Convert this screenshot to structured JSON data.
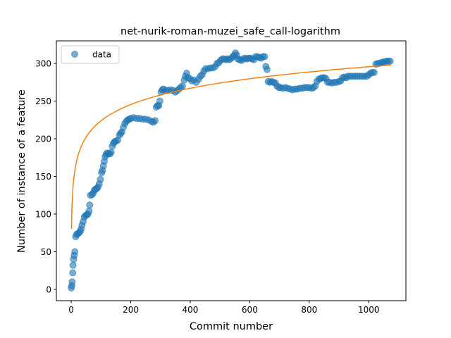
{
  "chart_data": {
    "type": "scatter",
    "title": "net-nurik-roman-muzei_safe_call-logarithm",
    "xlabel": "Commit number",
    "ylabel": "Number of instance of a feature",
    "xlim": [
      -50,
      1125
    ],
    "ylim": [
      -15,
      330
    ],
    "x_ticks": [
      0,
      200,
      400,
      600,
      800,
      1000
    ],
    "y_ticks": [
      0,
      50,
      100,
      150,
      200,
      250,
      300
    ],
    "grid": false,
    "legend": {
      "position": "upper-left",
      "entries": [
        "data"
      ]
    },
    "series": [
      {
        "name": "data",
        "kind": "scatter",
        "color": "#1f77b4",
        "points": [
          [
            0,
            2
          ],
          [
            2,
            5
          ],
          [
            3,
            10
          ],
          [
            5,
            22
          ],
          [
            6,
            32
          ],
          [
            8,
            40
          ],
          [
            10,
            45
          ],
          [
            12,
            50
          ],
          [
            15,
            70
          ],
          [
            18,
            73
          ],
          [
            22,
            74
          ],
          [
            26,
            75
          ],
          [
            30,
            77
          ],
          [
            33,
            80
          ],
          [
            36,
            85
          ],
          [
            40,
            90
          ],
          [
            44,
            96
          ],
          [
            48,
            98
          ],
          [
            52,
            99
          ],
          [
            56,
            100
          ],
          [
            60,
            104
          ],
          [
            62,
            112
          ],
          [
            65,
            125
          ],
          [
            70,
            126
          ],
          [
            74,
            128
          ],
          [
            78,
            132
          ],
          [
            82,
            133
          ],
          [
            86,
            134
          ],
          [
            90,
            136
          ],
          [
            94,
            140
          ],
          [
            98,
            146
          ],
          [
            102,
            155
          ],
          [
            105,
            158
          ],
          [
            108,
            164
          ],
          [
            111,
            170
          ],
          [
            114,
            176
          ],
          [
            117,
            179
          ],
          [
            120,
            181
          ],
          [
            125,
            180
          ],
          [
            130,
            180
          ],
          [
            134,
            182
          ],
          [
            138,
            190
          ],
          [
            142,
            194
          ],
          [
            146,
            196
          ],
          [
            150,
            197
          ],
          [
            156,
            198
          ],
          [
            162,
            205
          ],
          [
            166,
            207
          ],
          [
            170,
            209
          ],
          [
            175,
            215
          ],
          [
            180,
            220
          ],
          [
            185,
            223
          ],
          [
            190,
            225
          ],
          [
            195,
            226
          ],
          [
            200,
            227
          ],
          [
            210,
            228
          ],
          [
            220,
            227
          ],
          [
            230,
            227
          ],
          [
            240,
            226
          ],
          [
            250,
            226
          ],
          [
            260,
            225
          ],
          [
            270,
            223
          ],
          [
            276,
            222
          ],
          [
            282,
            224
          ],
          [
            286,
            242
          ],
          [
            290,
            244
          ],
          [
            294,
            244
          ],
          [
            298,
            250
          ],
          [
            302,
            262
          ],
          [
            306,
            265
          ],
          [
            310,
            266
          ],
          [
            318,
            264
          ],
          [
            326,
            264
          ],
          [
            334,
            265
          ],
          [
            342,
            264
          ],
          [
            350,
            262
          ],
          [
            356,
            264
          ],
          [
            362,
            266
          ],
          [
            368,
            268
          ],
          [
            374,
            270
          ],
          [
            380,
            278
          ],
          [
            384,
            283
          ],
          [
            388,
            287
          ],
          [
            392,
            281
          ],
          [
            398,
            280
          ],
          [
            405,
            277
          ],
          [
            412,
            278
          ],
          [
            420,
            275
          ],
          [
            428,
            279
          ],
          [
            434,
            283
          ],
          [
            440,
            285
          ],
          [
            446,
            290
          ],
          [
            452,
            293
          ],
          [
            460,
            293
          ],
          [
            468,
            294
          ],
          [
            476,
            294
          ],
          [
            484,
            296
          ],
          [
            490,
            300
          ],
          [
            496,
            301
          ],
          [
            502,
            304
          ],
          [
            508,
            306
          ],
          [
            514,
            306
          ],
          [
            520,
            305
          ],
          [
            526,
            306
          ],
          [
            532,
            305
          ],
          [
            538,
            307
          ],
          [
            544,
            309
          ],
          [
            548,
            311
          ],
          [
            552,
            314
          ],
          [
            556,
            311
          ],
          [
            560,
            306
          ],
          [
            566,
            305
          ],
          [
            572,
            304
          ],
          [
            578,
            306
          ],
          [
            584,
            307
          ],
          [
            590,
            306
          ],
          [
            596,
            307
          ],
          [
            602,
            307
          ],
          [
            608,
            306
          ],
          [
            614,
            305
          ],
          [
            620,
            309
          ],
          [
            626,
            309
          ],
          [
            632,
            308
          ],
          [
            638,
            307
          ],
          [
            644,
            309
          ],
          [
            650,
            309
          ],
          [
            654,
            296
          ],
          [
            658,
            292
          ],
          [
            662,
            276
          ],
          [
            668,
            275
          ],
          [
            674,
            276
          ],
          [
            680,
            275
          ],
          [
            686,
            274
          ],
          [
            692,
            270
          ],
          [
            698,
            268
          ],
          [
            704,
            268
          ],
          [
            712,
            267
          ],
          [
            720,
            268
          ],
          [
            728,
            267
          ],
          [
            736,
            266
          ],
          [
            744,
            265
          ],
          [
            752,
            266
          ],
          [
            760,
            266
          ],
          [
            768,
            267
          ],
          [
            776,
            267
          ],
          [
            784,
            268
          ],
          [
            792,
            268
          ],
          [
            800,
            268
          ],
          [
            808,
            267
          ],
          [
            814,
            268
          ],
          [
            820,
            270
          ],
          [
            826,
            276
          ],
          [
            832,
            279
          ],
          [
            838,
            280
          ],
          [
            844,
            281
          ],
          [
            850,
            281
          ],
          [
            856,
            280
          ],
          [
            862,
            275
          ],
          [
            868,
            275
          ],
          [
            876,
            274
          ],
          [
            884,
            275
          ],
          [
            892,
            275
          ],
          [
            900,
            276
          ],
          [
            906,
            277
          ],
          [
            912,
            281
          ],
          [
            918,
            282
          ],
          [
            924,
            281
          ],
          [
            930,
            283
          ],
          [
            938,
            283
          ],
          [
            946,
            283
          ],
          [
            954,
            283
          ],
          [
            962,
            283
          ],
          [
            970,
            283
          ],
          [
            978,
            283
          ],
          [
            986,
            283
          ],
          [
            994,
            283
          ],
          [
            1000,
            285
          ],
          [
            1006,
            287
          ],
          [
            1012,
            288
          ],
          [
            1018,
            288
          ],
          [
            1024,
            299
          ],
          [
            1030,
            300
          ],
          [
            1036,
            300
          ],
          [
            1042,
            301
          ],
          [
            1048,
            302
          ],
          [
            1054,
            302
          ],
          [
            1060,
            303
          ],
          [
            1066,
            303
          ],
          [
            1072,
            303
          ]
        ]
      },
      {
        "name": "",
        "kind": "line",
        "color": "#ff7f0e",
        "model": "logarithm",
        "x_range": [
          1,
          1075
        ],
        "coeffs": {
          "a": 31.18,
          "b": 80.21
        }
      }
    ]
  }
}
